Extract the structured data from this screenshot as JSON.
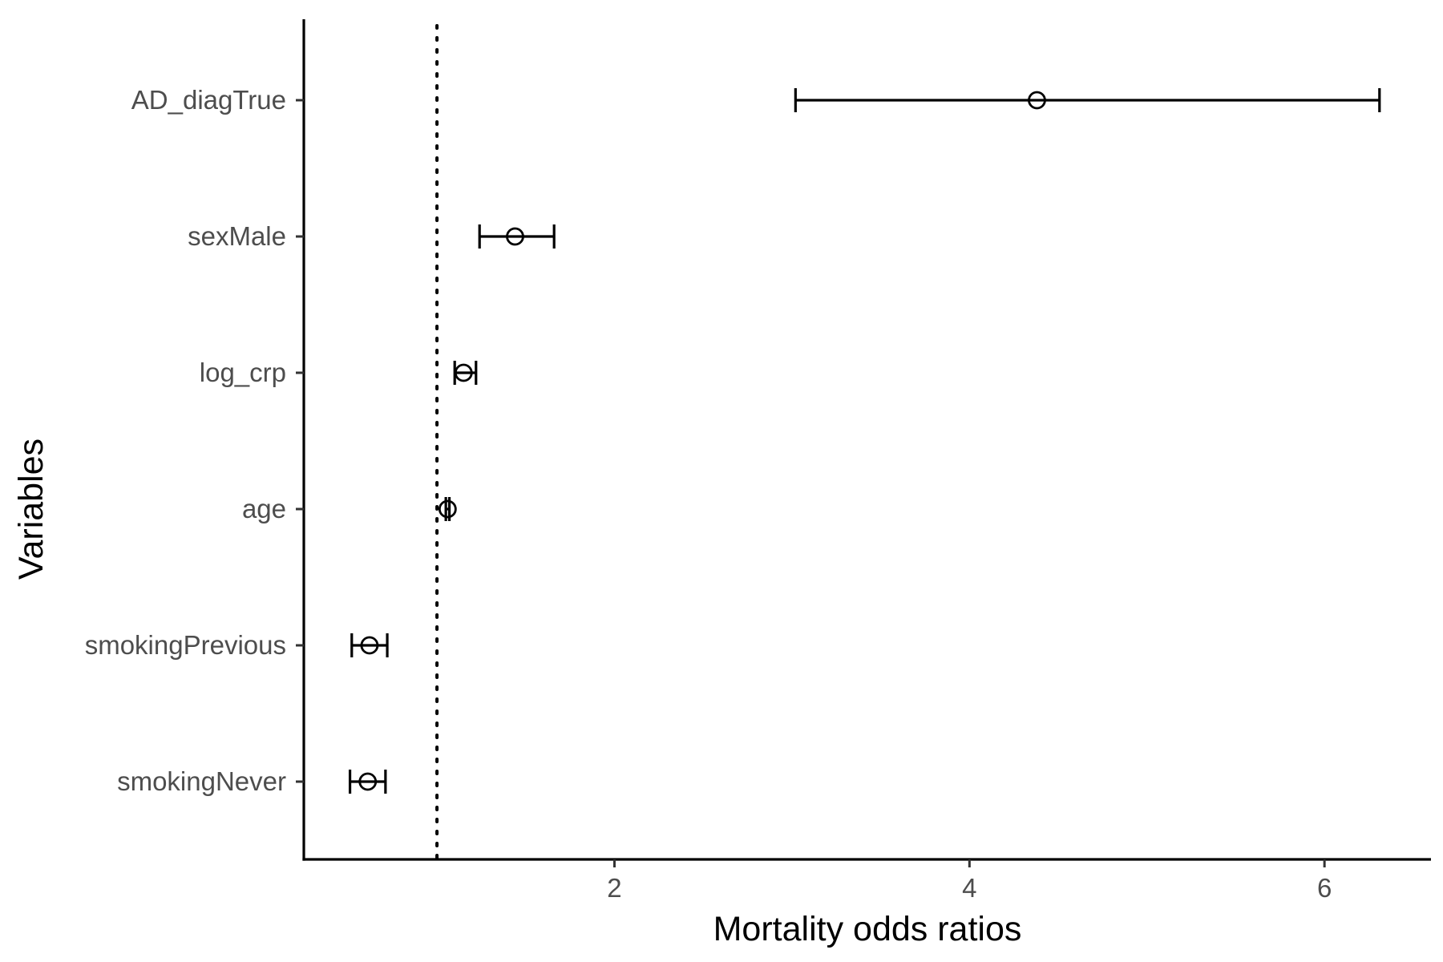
{
  "chart_data": {
    "type": "scatter",
    "subtype": "forest-plot-with-error-bars",
    "title": "",
    "xlabel": "Mortality odds ratios",
    "ylabel": "Variables",
    "xlim": [
      0.25,
      6.6
    ],
    "x_ticks": [
      2,
      4,
      6
    ],
    "reference_line": {
      "x": 1,
      "style": "dotted"
    },
    "grid": false,
    "legend": "none",
    "point_marker": "open-circle",
    "series": [
      {
        "rows": [
          {
            "label": "AD_diagTrue",
            "estimate": 4.38,
            "lower": 3.02,
            "upper": 6.31
          },
          {
            "label": "sexMale",
            "estimate": 1.44,
            "lower": 1.24,
            "upper": 1.66
          },
          {
            "label": "log_crp",
            "estimate": 1.15,
            "lower": 1.1,
            "upper": 1.22
          },
          {
            "label": "age",
            "estimate": 1.06,
            "lower": 1.05,
            "upper": 1.07
          },
          {
            "label": "smokingPrevious",
            "estimate": 0.62,
            "lower": 0.52,
            "upper": 0.72
          },
          {
            "label": "smokingNever",
            "estimate": 0.61,
            "lower": 0.51,
            "upper": 0.71
          }
        ]
      }
    ],
    "colors": {
      "marks": "#000000",
      "tick_text": "#4d4d4d",
      "background": "#ffffff"
    }
  }
}
